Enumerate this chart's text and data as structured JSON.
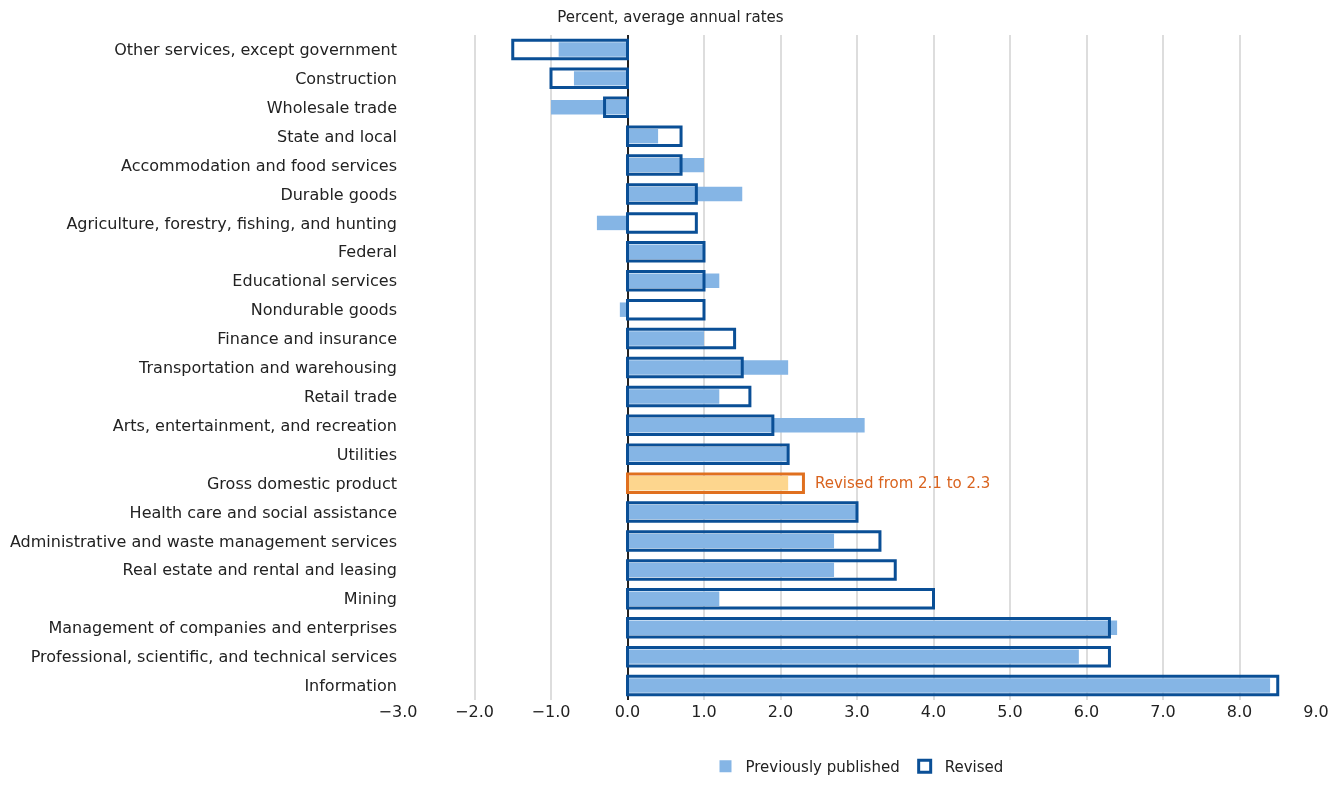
{
  "chart_data": {
    "type": "bar",
    "orientation": "horizontal",
    "title": "Percent, average annual rates",
    "categories": [
      "Other services, except government",
      "Construction",
      "Wholesale trade",
      "State and local",
      "Accommodation and food services",
      "Durable goods",
      "Agriculture, forestry, fishing, and hunting",
      "Federal",
      "Educational services",
      "Nondurable goods",
      "Finance and insurance",
      "Transportation and warehousing",
      "Retail trade",
      "Arts, entertainment, and recreation",
      "Utilities",
      "Gross domestic product",
      "Health care and social assistance",
      "Administrative and waste management services",
      "Real estate and rental and leasing",
      "Mining",
      "Management of companies and enterprises",
      "Professional, scientific, and technical services",
      "Information"
    ],
    "series": [
      {
        "name": "Previously published",
        "color": "#85b5e5",
        "colors": [
          null,
          null,
          null,
          null,
          null,
          null,
          null,
          null,
          null,
          null,
          null,
          null,
          null,
          null,
          null,
          "#fdd68e",
          null,
          null,
          null,
          null,
          null,
          null,
          null
        ],
        "values": [
          -0.9,
          -0.7,
          -1.0,
          0.4,
          1.0,
          1.5,
          -0.4,
          1.0,
          1.2,
          -0.1,
          1.0,
          2.1,
          1.2,
          3.1,
          2.1,
          2.1,
          3.0,
          2.7,
          2.7,
          1.2,
          6.4,
          5.9,
          8.4
        ]
      },
      {
        "name": "Revised",
        "color": "#0a4f96",
        "colors": [
          null,
          null,
          null,
          null,
          null,
          null,
          null,
          null,
          null,
          null,
          null,
          null,
          null,
          null,
          null,
          "#e0701f",
          null,
          null,
          null,
          null,
          null,
          null,
          null
        ],
        "values": [
          -1.5,
          -1.0,
          -0.3,
          0.7,
          0.7,
          0.9,
          0.9,
          1.0,
          1.0,
          1.0,
          1.4,
          1.5,
          1.6,
          1.9,
          2.1,
          2.3,
          3.0,
          3.3,
          3.5,
          4.0,
          6.3,
          6.3,
          8.5
        ]
      }
    ],
    "xlim": [
      -3.0,
      9.0
    ],
    "xticks": [
      {
        "value": -3,
        "label": "−3.0"
      },
      {
        "value": -2,
        "label": "−2.0"
      },
      {
        "value": -1,
        "label": "−1.0"
      },
      {
        "value": 0,
        "label": "0.0"
      },
      {
        "value": 1,
        "label": "1.0"
      },
      {
        "value": 2,
        "label": "2.0"
      },
      {
        "value": 3,
        "label": "3.0"
      },
      {
        "value": 4,
        "label": "4.0"
      },
      {
        "value": 5,
        "label": "5.0"
      },
      {
        "value": 6,
        "label": "6.0"
      },
      {
        "value": 7,
        "label": "7.0"
      },
      {
        "value": 8,
        "label": "8.0"
      },
      {
        "value": 9,
        "label": "9.0"
      }
    ],
    "grid": "x",
    "legend": "bottom",
    "annotations": [
      {
        "text": "Revised from 2.1 to 2.3",
        "x": 2.3,
        "y": "Gross domestic product"
      }
    ]
  }
}
